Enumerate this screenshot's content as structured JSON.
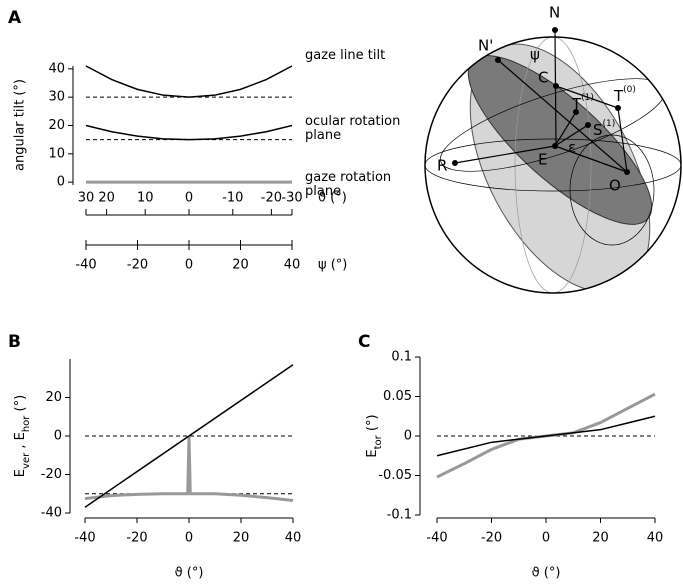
{
  "chart_data": [
    {
      "type": "line",
      "panel": "A",
      "ylabel": "angular tilt (°)",
      "ylim": [
        -1,
        41
      ],
      "yticks": [
        0,
        10,
        20,
        30,
        40
      ],
      "xlim": [
        -40,
        40
      ],
      "xticks": [
        -40,
        -20,
        0,
        20,
        40
      ],
      "xlabel": "ψ (°)",
      "theta_ticks": [
        30,
        20,
        10,
        0,
        -10,
        -20,
        -30
      ],
      "theta_positions": [
        -40,
        -32,
        -17,
        0,
        17,
        32,
        40
      ],
      "theta_label": "ϑ (°)",
      "hlines": [
        30,
        15,
        0
      ],
      "series": [
        {
          "name": "gaze line tilt",
          "color": "#000000",
          "linewidth": 1.5,
          "x": [
            -40,
            -30,
            -20,
            -10,
            0,
            10,
            20,
            30,
            40
          ],
          "values": [
            41,
            36.2,
            32.75,
            30.7,
            30,
            30.7,
            32.75,
            36.2,
            41
          ]
        },
        {
          "name": "ocular rotation plane",
          "color": "#000000",
          "linewidth": 1.5,
          "x": [
            -40,
            -30,
            -20,
            -10,
            0,
            10,
            20,
            30,
            40
          ],
          "values": [
            20,
            17.8,
            16.25,
            15.3,
            15,
            15.3,
            16.25,
            17.8,
            20
          ]
        },
        {
          "name": "gaze rotation plane",
          "color": "#999999",
          "linewidth": 3,
          "x": [
            -40,
            -30,
            -20,
            -10,
            0,
            10,
            20,
            30,
            40
          ],
          "values": [
            0,
            0,
            0,
            0,
            0,
            0,
            0,
            0,
            0
          ]
        }
      ]
    },
    {
      "type": "line",
      "panel": "B",
      "ylabel_parts": [
        {
          "text": "E"
        },
        {
          "text": "ver",
          "sub": true
        },
        {
          "text": " , E"
        },
        {
          "text": "hor",
          "sub": true
        },
        {
          "text": " (°)"
        }
      ],
      "ylim": [
        -40,
        40
      ],
      "yticks": [
        -40,
        -20,
        0,
        20
      ],
      "xlim": [
        -40,
        40
      ],
      "xticks": [
        -40,
        -20,
        0,
        20,
        40
      ],
      "xlabel": "ϑ (°)",
      "hlines": [
        0,
        -30
      ],
      "series": [
        {
          "color": "#999999",
          "linewidth": 3,
          "x": [
            -40,
            -30,
            -20,
            -10,
            -0.5,
            0,
            0.5,
            10,
            20,
            30,
            40
          ],
          "values": [
            -32.5,
            -31,
            -30.3,
            -30,
            -30,
            0,
            -30,
            -30,
            -30.8,
            -32,
            -33.5
          ]
        },
        {
          "color": "#000000",
          "linewidth": 1.5,
          "x": [
            -40,
            40
          ],
          "values": [
            -37,
            37
          ]
        }
      ]
    },
    {
      "type": "line",
      "panel": "C",
      "ylabel_parts": [
        {
          "text": "E"
        },
        {
          "text": "tor",
          "sub": true
        },
        {
          "text": " (°)"
        }
      ],
      "ylim": [
        -0.1,
        0.1
      ],
      "yticks": [
        -0.1,
        -0.05,
        0,
        0.05,
        0.1
      ],
      "xlim": [
        -40,
        40
      ],
      "xticks": [
        -40,
        -20,
        0,
        20,
        40
      ],
      "xlabel": "ϑ (°)",
      "hlines": [
        0
      ],
      "series": [
        {
          "color": "#999999",
          "linewidth": 3,
          "x": [
            -40,
            -30,
            -20,
            -10,
            0,
            10,
            20,
            30,
            40
          ],
          "values": [
            -0.052,
            -0.035,
            -0.017,
            -0.004,
            0,
            0.004,
            0.017,
            0.035,
            0.053
          ]
        },
        {
          "color": "#000000",
          "linewidth": 1.5,
          "x": [
            -40,
            -20,
            0,
            20,
            40
          ],
          "values": [
            -0.025,
            -0.008,
            0,
            0.008,
            0.025
          ]
        }
      ]
    }
  ],
  "diagram": {
    "N": "N",
    "Nprime": "N'",
    "psi": "ψ",
    "C": "C",
    "T1": "T",
    "T1sup": "(1)",
    "T0": "T",
    "T0sup": "(0)",
    "S1": "S",
    "S1sup": "(1)",
    "E": "E",
    "eps": "ε",
    "R": "R",
    "O": "O"
  }
}
